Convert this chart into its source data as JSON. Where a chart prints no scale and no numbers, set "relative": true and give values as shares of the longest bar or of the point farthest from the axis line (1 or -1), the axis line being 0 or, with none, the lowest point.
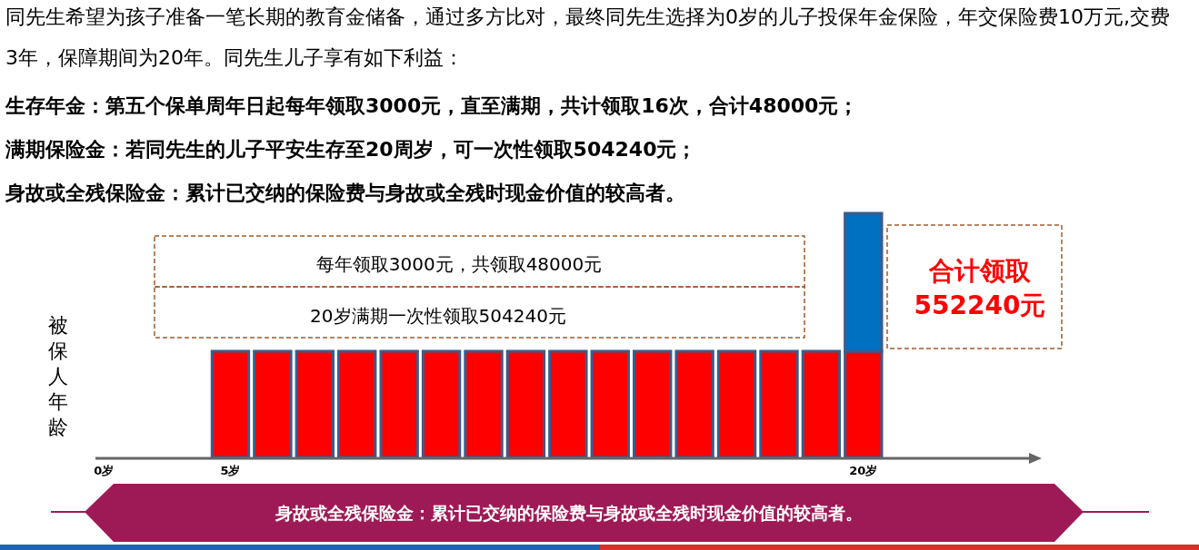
{
  "chart_data": {
    "type": "bar",
    "stacked": true,
    "relative": true,
    "ylabel": "被保人年龄",
    "categories": [
      "0岁",
      null,
      null,
      "5岁",
      null,
      null,
      null,
      null,
      null,
      null,
      null,
      null,
      null,
      null,
      null,
      null,
      null,
      null,
      "20岁"
    ],
    "series": [
      {
        "color": "#ff0000",
        "values": [
          null,
          null,
          null,
          0.435,
          0.435,
          0.435,
          0.435,
          0.435,
          0.435,
          0.435,
          0.435,
          0.435,
          0.435,
          0.435,
          0.435,
          0.435,
          0.435,
          0.435,
          0.435
        ]
      },
      {
        "color": "#0070c0",
        "values": [
          null,
          null,
          null,
          null,
          null,
          null,
          null,
          null,
          null,
          null,
          null,
          null,
          null,
          null,
          null,
          null,
          null,
          null,
          0.565
        ]
      }
    ],
    "annotations": [
      "同先生希望为孩子准备一笔长期的教育金储备，通过多方比对，最终同先生选择为0岁的儿子投保年金保险，年交保险费10万元,交费3年，保障期间为20年。同先生儿子享有如下利益：",
      "生存年金：第五个保单周年日起每年领取3000元，直至满期，共计领取16次，合计48000元；",
      "满期保险金：若同先生的儿子平安生存至20周岁，可一次性领取504240元；",
      "身故或全残保险金：累计已交纳的保险费与身故或全残时现金价值的较高者。",
      "每年领取3000元，共领取48000元",
      "20岁满期一次性领取504240元",
      "合计领取552240元",
      "身故或全残保险金：累计已交纳的保险费与身故或全残时现金价值的较高者。"
    ]
  }
}
